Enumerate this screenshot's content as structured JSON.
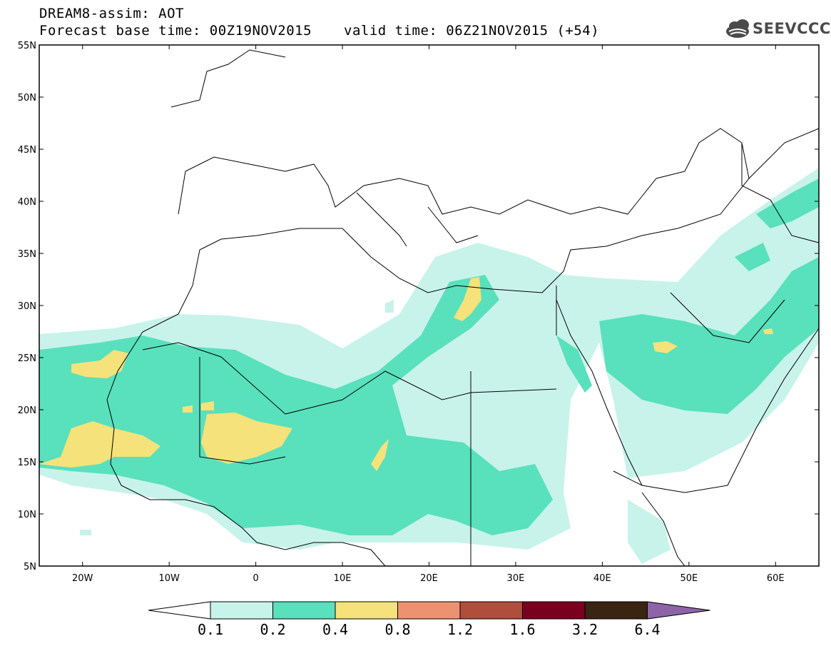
{
  "header": {
    "title": "DREAM8-assim: AOT",
    "base_time": "Forecast base time: 00Z19NOV2015",
    "valid_time": "valid time: 06Z21NOV2015 (+54)",
    "logo_text": "SEEVCCC"
  },
  "map": {
    "lon_range": [
      -25,
      65
    ],
    "lat_range": [
      5,
      55
    ],
    "lat_labels": [
      "55N",
      "50N",
      "45N",
      "40N",
      "35N",
      "30N",
      "25N",
      "20N",
      "15N",
      "10N",
      "5N"
    ],
    "lat_values": [
      55,
      50,
      45,
      40,
      35,
      30,
      25,
      20,
      15,
      10,
      5
    ],
    "lon_labels": [
      "20W",
      "10W",
      "0",
      "10E",
      "20E",
      "30E",
      "40E",
      "50E",
      "60E"
    ],
    "lon_values": [
      -20,
      -10,
      0,
      10,
      20,
      30,
      40,
      50,
      60
    ]
  },
  "colorbar": {
    "labels": [
      "0.1",
      "0.2",
      "0.4",
      "0.8",
      "1.2",
      "1.6",
      "3.2",
      "6.4"
    ],
    "colors": [
      "#c8f3ea",
      "#59e0bd",
      "#f5e27a",
      "#ed9270",
      "#b04d3d",
      "#7a0020",
      "#3a2412",
      "#8d64a8"
    ],
    "under_color": "#ffffff"
  },
  "colors": {
    "level1": "#c8f3ea",
    "level2": "#59e0bd",
    "level3": "#f5e27a",
    "coast": "#000000"
  }
}
